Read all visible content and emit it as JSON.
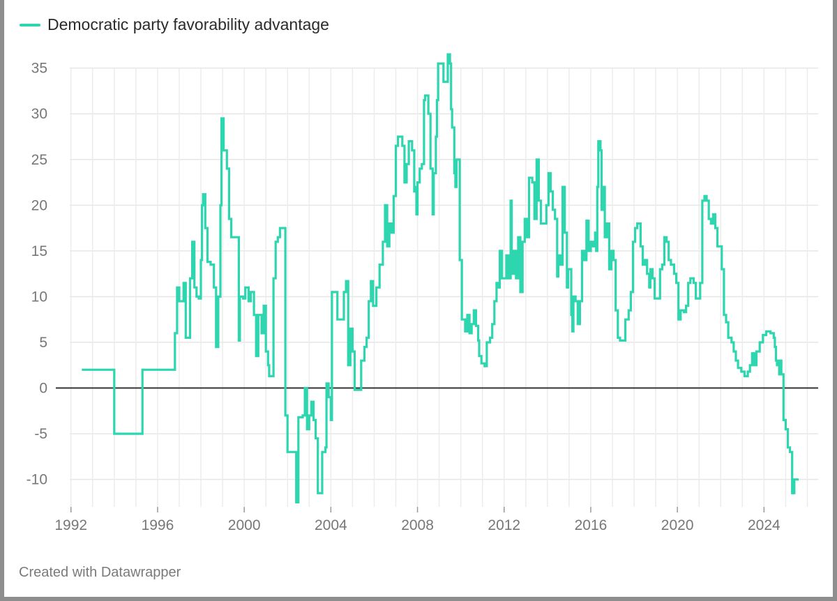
{
  "legend": {
    "label": "Democratic party favorability advantage",
    "color": "#2ed6b0"
  },
  "footer": {
    "credit": "Created with Datawrapper"
  },
  "chart_data": {
    "type": "line",
    "title": "",
    "xlabel": "",
    "ylabel": "",
    "line_style": "step",
    "xlim": [
      1991.3,
      2026.5
    ],
    "ylim": [
      -13,
      36.5
    ],
    "x_ticks": [
      1992,
      1996,
      2000,
      2004,
      2008,
      2012,
      2016,
      2020,
      2024
    ],
    "y_ticks": [
      35,
      30,
      25,
      20,
      15,
      10,
      5,
      0,
      -5,
      -10
    ],
    "zero_line": true,
    "grid": true,
    "series": [
      {
        "name": "Democratic party favorability advantage",
        "color": "#2ed6b0",
        "points": [
          [
            1992.5,
            2
          ],
          [
            1994.0,
            2
          ],
          [
            1994.0,
            -5
          ],
          [
            1995.3,
            -5
          ],
          [
            1995.3,
            2
          ],
          [
            1996.7,
            2
          ],
          [
            1996.8,
            6
          ],
          [
            1996.9,
            11
          ],
          [
            1997.0,
            9.5
          ],
          [
            1997.2,
            11.5
          ],
          [
            1997.3,
            5.5
          ],
          [
            1997.5,
            12
          ],
          [
            1997.6,
            16
          ],
          [
            1997.7,
            11
          ],
          [
            1997.8,
            10
          ],
          [
            1997.9,
            9.8
          ],
          [
            1998.0,
            14
          ],
          [
            1998.05,
            20
          ],
          [
            1998.1,
            21.2
          ],
          [
            1998.2,
            17.5
          ],
          [
            1998.3,
            13.8
          ],
          [
            1998.45,
            13.5
          ],
          [
            1998.6,
            11
          ],
          [
            1998.7,
            4.5
          ],
          [
            1998.8,
            10
          ],
          [
            1998.9,
            20
          ],
          [
            1998.95,
            29.5
          ],
          [
            1999.05,
            26
          ],
          [
            1999.2,
            24
          ],
          [
            1999.3,
            18.5
          ],
          [
            1999.4,
            16.5
          ],
          [
            1999.7,
            16.5
          ],
          [
            1999.75,
            5.2
          ],
          [
            1999.8,
            10
          ],
          [
            1999.95,
            9.8
          ],
          [
            2000.05,
            11
          ],
          [
            2000.2,
            9.5
          ],
          [
            2000.3,
            10.5
          ],
          [
            2000.45,
            8
          ],
          [
            2000.55,
            3.5
          ],
          [
            2000.65,
            8
          ],
          [
            2000.8,
            6
          ],
          [
            2000.9,
            9
          ],
          [
            2001.0,
            4
          ],
          [
            2001.1,
            2.5
          ],
          [
            2001.15,
            1.3
          ],
          [
            2001.3,
            1.3
          ],
          [
            2001.35,
            12
          ],
          [
            2001.45,
            16
          ],
          [
            2001.55,
            16.5
          ],
          [
            2001.65,
            17.5
          ],
          [
            2001.8,
            17.5
          ],
          [
            2001.9,
            -3
          ],
          [
            2002.0,
            -7
          ],
          [
            2002.3,
            -7
          ],
          [
            2002.4,
            -12.5
          ],
          [
            2002.5,
            -3.2
          ],
          [
            2002.7,
            -3
          ],
          [
            2002.8,
            0
          ],
          [
            2002.9,
            -4.5
          ],
          [
            2003.0,
            -3
          ],
          [
            2003.1,
            -1.5
          ],
          [
            2003.2,
            -3.5
          ],
          [
            2003.3,
            -5.5
          ],
          [
            2003.4,
            -11.5
          ],
          [
            2003.55,
            -11.5
          ],
          [
            2003.6,
            -7
          ],
          [
            2003.75,
            -6.5
          ],
          [
            2003.8,
            0.5
          ],
          [
            2003.9,
            -1
          ],
          [
            2004.0,
            -3.5
          ],
          [
            2004.05,
            10.5
          ],
          [
            2004.2,
            10.5
          ],
          [
            2004.3,
            7.5
          ],
          [
            2004.55,
            7.5
          ],
          [
            2004.6,
            10.5
          ],
          [
            2004.7,
            11.7
          ],
          [
            2004.8,
            2.5
          ],
          [
            2004.9,
            6.5
          ],
          [
            2005.0,
            4
          ],
          [
            2005.1,
            -0.2
          ],
          [
            2005.3,
            -0.2
          ],
          [
            2005.4,
            3
          ],
          [
            2005.55,
            4.5
          ],
          [
            2005.65,
            5.5
          ],
          [
            2005.75,
            9.5
          ],
          [
            2005.85,
            11.7
          ],
          [
            2005.95,
            9
          ],
          [
            2006.1,
            11
          ],
          [
            2006.25,
            13.5
          ],
          [
            2006.4,
            16
          ],
          [
            2006.5,
            20
          ],
          [
            2006.6,
            15.5
          ],
          [
            2006.7,
            18
          ],
          [
            2006.8,
            17
          ],
          [
            2006.9,
            21
          ],
          [
            2007.0,
            26.5
          ],
          [
            2007.1,
            27.5
          ],
          [
            2007.3,
            26.5
          ],
          [
            2007.4,
            22.5
          ],
          [
            2007.5,
            24.5
          ],
          [
            2007.6,
            27
          ],
          [
            2007.75,
            26
          ],
          [
            2007.85,
            21.5
          ],
          [
            2007.9,
            22
          ],
          [
            2007.95,
            19
          ],
          [
            2008.0,
            22.5
          ],
          [
            2008.1,
            24
          ],
          [
            2008.2,
            24.5
          ],
          [
            2008.3,
            31.5
          ],
          [
            2008.35,
            32
          ],
          [
            2008.5,
            30
          ],
          [
            2008.6,
            24
          ],
          [
            2008.7,
            19
          ],
          [
            2008.75,
            23.5
          ],
          [
            2008.85,
            27.5
          ],
          [
            2008.9,
            31.5
          ],
          [
            2008.95,
            35.5
          ],
          [
            2009.1,
            35.5
          ],
          [
            2009.2,
            33.5
          ],
          [
            2009.3,
            33.5
          ],
          [
            2009.4,
            36.5
          ],
          [
            2009.5,
            35.5
          ],
          [
            2009.55,
            30.5
          ],
          [
            2009.6,
            28.5
          ],
          [
            2009.7,
            23.5
          ],
          [
            2009.75,
            22
          ],
          [
            2009.8,
            25
          ],
          [
            2009.9,
            25
          ],
          [
            2009.95,
            14
          ],
          [
            2010.05,
            7.5
          ],
          [
            2010.15,
            7.5
          ],
          [
            2010.2,
            6.2
          ],
          [
            2010.3,
            8
          ],
          [
            2010.4,
            6
          ],
          [
            2010.5,
            7
          ],
          [
            2010.6,
            8.5
          ],
          [
            2010.7,
            6.8
          ],
          [
            2010.8,
            5.2
          ],
          [
            2010.85,
            3.5
          ],
          [
            2010.95,
            2.7
          ],
          [
            2011.1,
            2.4
          ],
          [
            2011.2,
            5
          ],
          [
            2011.35,
            5.5
          ],
          [
            2011.45,
            7
          ],
          [
            2011.55,
            9.5
          ],
          [
            2011.65,
            11.5
          ],
          [
            2011.75,
            11
          ],
          [
            2011.8,
            15
          ],
          [
            2011.9,
            12
          ],
          [
            2012.0,
            12
          ],
          [
            2012.1,
            14.5
          ],
          [
            2012.2,
            12
          ],
          [
            2012.3,
            20.5
          ],
          [
            2012.35,
            12.5
          ],
          [
            2012.45,
            15
          ],
          [
            2012.55,
            12
          ],
          [
            2012.65,
            16.5
          ],
          [
            2012.75,
            10.5
          ],
          [
            2012.85,
            16
          ],
          [
            2012.95,
            18.5
          ],
          [
            2013.05,
            16.5
          ],
          [
            2013.15,
            23
          ],
          [
            2013.3,
            22.5
          ],
          [
            2013.4,
            18.5
          ],
          [
            2013.5,
            25
          ],
          [
            2013.6,
            20.5
          ],
          [
            2013.7,
            18
          ],
          [
            2013.85,
            18
          ],
          [
            2013.95,
            20
          ],
          [
            2014.05,
            23.5
          ],
          [
            2014.15,
            21.5
          ],
          [
            2014.25,
            19.5
          ],
          [
            2014.35,
            18.5
          ],
          [
            2014.45,
            12.2
          ],
          [
            2014.5,
            14.5
          ],
          [
            2014.6,
            13.5
          ],
          [
            2014.7,
            22
          ],
          [
            2014.8,
            17
          ],
          [
            2014.9,
            11
          ],
          [
            2014.95,
            13
          ],
          [
            2015.1,
            8
          ],
          [
            2015.15,
            6.2
          ],
          [
            2015.2,
            10
          ],
          [
            2015.3,
            9.5
          ],
          [
            2015.4,
            7
          ],
          [
            2015.5,
            9.5
          ],
          [
            2015.6,
            15
          ],
          [
            2015.7,
            14
          ],
          [
            2015.8,
            18.3
          ],
          [
            2015.9,
            15
          ],
          [
            2016.0,
            16
          ],
          [
            2016.1,
            15.5
          ],
          [
            2016.2,
            17
          ],
          [
            2016.25,
            15
          ],
          [
            2016.3,
            22
          ],
          [
            2016.35,
            27
          ],
          [
            2016.45,
            26
          ],
          [
            2016.5,
            19.5
          ],
          [
            2016.55,
            22
          ],
          [
            2016.65,
            16.5
          ],
          [
            2016.75,
            18
          ],
          [
            2016.85,
            13
          ],
          [
            2016.95,
            15
          ],
          [
            2017.05,
            14
          ],
          [
            2017.15,
            8.5
          ],
          [
            2017.25,
            5.5
          ],
          [
            2017.35,
            5.2
          ],
          [
            2017.5,
            5.2
          ],
          [
            2017.6,
            7.5
          ],
          [
            2017.75,
            8.5
          ],
          [
            2017.85,
            10.5
          ],
          [
            2017.95,
            16
          ],
          [
            2018.05,
            17.5
          ],
          [
            2018.15,
            18
          ],
          [
            2018.3,
            15.5
          ],
          [
            2018.4,
            13.5
          ],
          [
            2018.5,
            14
          ],
          [
            2018.6,
            12.5
          ],
          [
            2018.7,
            11
          ],
          [
            2018.75,
            13
          ],
          [
            2018.85,
            12
          ],
          [
            2018.95,
            9.8
          ],
          [
            2019.1,
            9.8
          ],
          [
            2019.2,
            13
          ],
          [
            2019.3,
            13.5
          ],
          [
            2019.4,
            16.5
          ],
          [
            2019.5,
            16
          ],
          [
            2019.6,
            14
          ],
          [
            2019.7,
            13.5
          ],
          [
            2019.85,
            12.5
          ],
          [
            2019.95,
            11.5
          ],
          [
            2020.05,
            7.5
          ],
          [
            2020.15,
            8.5
          ],
          [
            2020.3,
            8.3
          ],
          [
            2020.4,
            9
          ],
          [
            2020.5,
            11.5
          ],
          [
            2020.6,
            12
          ],
          [
            2020.75,
            11.5
          ],
          [
            2020.85,
            9.8
          ],
          [
            2020.95,
            9.8
          ],
          [
            2021.05,
            11.5
          ],
          [
            2021.15,
            20.5
          ],
          [
            2021.25,
            21
          ],
          [
            2021.35,
            20.5
          ],
          [
            2021.45,
            18.5
          ],
          [
            2021.55,
            18
          ],
          [
            2021.65,
            19
          ],
          [
            2021.75,
            17.5
          ],
          [
            2021.85,
            15.5
          ],
          [
            2021.95,
            15.5
          ],
          [
            2022.05,
            13
          ],
          [
            2022.15,
            8
          ],
          [
            2022.25,
            7.2
          ],
          [
            2022.35,
            5.5
          ],
          [
            2022.5,
            5
          ],
          [
            2022.6,
            4
          ],
          [
            2022.7,
            3
          ],
          [
            2022.8,
            2.2
          ],
          [
            2022.95,
            1.8
          ],
          [
            2023.1,
            1.3
          ],
          [
            2023.25,
            1.8
          ],
          [
            2023.35,
            2.5
          ],
          [
            2023.45,
            3.8
          ],
          [
            2023.55,
            2.5
          ],
          [
            2023.65,
            4
          ],
          [
            2023.8,
            5
          ],
          [
            2023.95,
            5.8
          ],
          [
            2024.1,
            6.2
          ],
          [
            2024.3,
            6
          ],
          [
            2024.45,
            5.5
          ],
          [
            2024.5,
            4.5
          ],
          [
            2024.55,
            3
          ],
          [
            2024.6,
            2.5
          ],
          [
            2024.65,
            3
          ],
          [
            2024.7,
            1.5
          ],
          [
            2024.75,
            3
          ],
          [
            2024.8,
            1.5
          ],
          [
            2024.9,
            -3.5
          ],
          [
            2025.0,
            -4.5
          ],
          [
            2025.1,
            -6.5
          ],
          [
            2025.2,
            -7
          ],
          [
            2025.3,
            -11.5
          ],
          [
            2025.4,
            -10
          ],
          [
            2025.6,
            -10
          ]
        ]
      }
    ]
  }
}
